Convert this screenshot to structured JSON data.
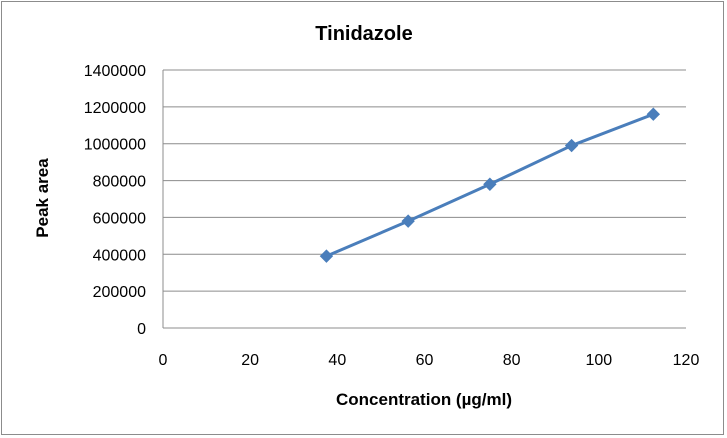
{
  "chart_data": {
    "type": "line",
    "title": "Tinidazole",
    "xlabel": "Concentration (µg/ml)",
    "ylabel": "Peak  area",
    "xlim": [
      0,
      120
    ],
    "ylim": [
      0,
      1400000
    ],
    "xticks": [
      0,
      20,
      40,
      60,
      80,
      100,
      120
    ],
    "yticks": [
      0,
      200000,
      400000,
      600000,
      800000,
      1000000,
      1200000,
      1400000
    ],
    "grid": "horizontal",
    "legend": "none",
    "marker": "diamond",
    "color": "#4a7ebb",
    "series": [
      {
        "x": [
          37.5,
          56.25,
          75,
          93.75,
          112.5
        ],
        "y": [
          390000,
          580000,
          780000,
          990000,
          1160000
        ]
      }
    ]
  }
}
